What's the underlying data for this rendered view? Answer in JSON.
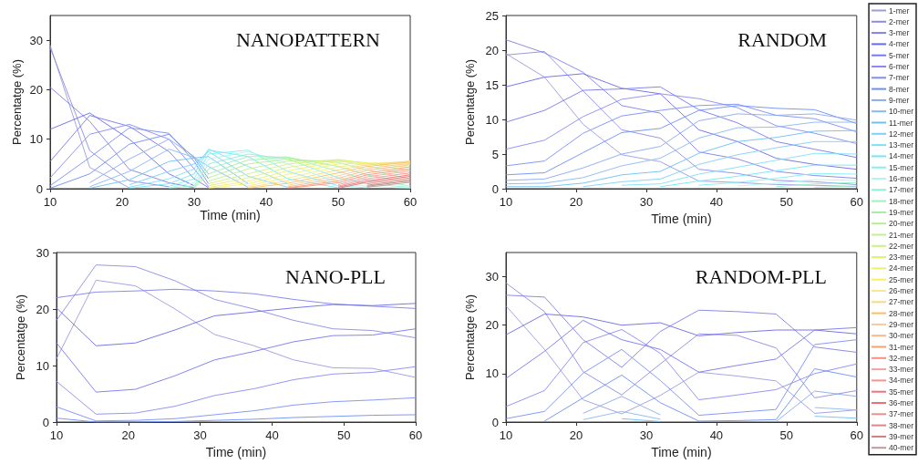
{
  "chart_data": [
    {
      "type": "line",
      "title": "NANOPATTERN",
      "xlabel": "Time (min)",
      "ylabel": "Percentatge (%)",
      "x": [
        10,
        15.5,
        21,
        26.5,
        30,
        32,
        37.5,
        43,
        50,
        54,
        60
      ],
      "xlim": [
        10,
        60
      ],
      "xticks": [
        10,
        20,
        30,
        40,
        50,
        60
      ],
      "ylim": [
        0,
        35
      ],
      "yticks": [
        0,
        10,
        20,
        30
      ],
      "grid": false,
      "marker": "none",
      "line_style": "solid",
      "legend": "right",
      "series": [
        {
          "name": "1-mer",
          "color": "#9b9be0",
          "values": [
            29,
            4.3,
            0.2,
            null,
            null,
            null,
            null,
            null,
            null,
            null,
            null
          ]
        },
        {
          "name": "2-mer",
          "color": "#8c8ce6",
          "values": [
            28.5,
            7.7,
            1.6,
            0.4,
            null,
            null,
            null,
            null,
            null,
            null,
            null
          ]
        },
        {
          "name": "3-mer",
          "color": "#8080e8",
          "values": [
            20.5,
            13.6,
            3.9,
            1.2,
            0.2,
            null,
            null,
            null,
            null,
            null,
            null
          ]
        },
        {
          "name": "4-mer",
          "color": "#6a6ae6",
          "values": [
            12,
            15.3,
            10,
            3,
            0.6,
            null,
            null,
            null,
            null,
            null,
            null
          ]
        },
        {
          "name": "5-mer",
          "color": "#7878f0",
          "values": [
            5.5,
            14.8,
            12.6,
            7.5,
            2,
            0.2,
            null,
            null,
            null,
            null,
            null
          ]
        },
        {
          "name": "6-mer",
          "color": "#8a8af5",
          "values": [
            2.2,
            11,
            13,
            10,
            4,
            0.4,
            null,
            null,
            null,
            null,
            null
          ]
        },
        {
          "name": "7-mer",
          "color": "#7b8ff5",
          "values": [
            0.6,
            6.3,
            12.3,
            11.2,
            5.5,
            1,
            null,
            null,
            null,
            null,
            null
          ]
        },
        {
          "name": "8-mer",
          "color": "#6d8ff2",
          "values": [
            0.1,
            3,
            9,
            11,
            6.2,
            2,
            null,
            null,
            null,
            null,
            null
          ]
        },
        {
          "name": "9-mer",
          "color": "#8aaaf0",
          "values": [
            null,
            1.2,
            6,
            10,
            6.5,
            3,
            null,
            null,
            null,
            null,
            null
          ]
        },
        {
          "name": "10-mer",
          "color": "#8ab8f0",
          "values": [
            null,
            0.4,
            3.5,
            8,
            6.3,
            4.5,
            0.3,
            null,
            null,
            null,
            null
          ]
        },
        {
          "name": "11-mer",
          "color": "#6ec0f2",
          "values": [
            null,
            0.1,
            1.8,
            5.5,
            6.2,
            6.5,
            1,
            null,
            null,
            null,
            null
          ]
        },
        {
          "name": "12-mer",
          "color": "#80cff5",
          "values": [
            null,
            null,
            0.8,
            3.5,
            5,
            7.5,
            2.5,
            0.3,
            null,
            null,
            null
          ]
        },
        {
          "name": "13-mer",
          "color": "#80e0f5",
          "values": [
            null,
            null,
            0.3,
            2,
            4,
            8,
            4.5,
            1,
            null,
            null,
            null
          ]
        },
        {
          "name": "14-mer",
          "color": "#70e8f5",
          "values": [
            null,
            null,
            0.1,
            1,
            3,
            7.8,
            6.5,
            2,
            0.2,
            null,
            null
          ]
        },
        {
          "name": "15-mer",
          "color": "#80f0f0",
          "values": [
            null,
            null,
            null,
            0.5,
            2,
            7,
            7.8,
            3.5,
            0.6,
            0.2,
            null
          ]
        },
        {
          "name": "16-mer",
          "color": "#b0f5f0",
          "values": [
            null,
            null,
            null,
            0.2,
            1.2,
            6,
            7.5,
            5,
            1.2,
            0.5,
            0.1
          ]
        },
        {
          "name": "17-mer",
          "color": "#90f0d0",
          "values": [
            null,
            null,
            null,
            0.1,
            0.6,
            5,
            7,
            6,
            2.2,
            1,
            0.3
          ]
        },
        {
          "name": "18-mer",
          "color": "#a0f0c0",
          "values": [
            null,
            null,
            null,
            null,
            0.3,
            4,
            6.5,
            6.4,
            3.5,
            1.8,
            0.6
          ]
        },
        {
          "name": "19-mer",
          "color": "#a0f0a0",
          "values": [
            null,
            null,
            null,
            null,
            0.1,
            3,
            5.8,
            6.3,
            4.5,
            2.8,
            1.2
          ]
        },
        {
          "name": "20-mer",
          "color": "#b0f090",
          "values": [
            null,
            null,
            null,
            null,
            null,
            2.2,
            5,
            6,
            5.3,
            3.8,
            2
          ]
        },
        {
          "name": "21-mer",
          "color": "#c0f090",
          "values": [
            null,
            null,
            null,
            null,
            null,
            1.5,
            4,
            5.6,
            5.7,
            4.6,
            2.8
          ]
        },
        {
          "name": "22-mer",
          "color": "#d0f080",
          "values": [
            null,
            null,
            null,
            null,
            null,
            1,
            3,
            5,
            5.9,
            5.1,
            3.6
          ]
        },
        {
          "name": "23-mer",
          "color": "#e0f070",
          "values": [
            null,
            null,
            null,
            null,
            null,
            0.6,
            2.2,
            4.3,
            5.8,
            5.2,
            4.3
          ]
        },
        {
          "name": "24-mer",
          "color": "#f0f070",
          "values": [
            null,
            null,
            null,
            null,
            null,
            0.3,
            1.5,
            3.6,
            5.5,
            5.2,
            4.9
          ]
        },
        {
          "name": "25-mer",
          "color": "#f8f060",
          "values": [
            null,
            null,
            null,
            null,
            null,
            0.1,
            1,
            2.9,
            5,
            5.1,
            5.3
          ]
        },
        {
          "name": "26-mer",
          "color": "#f8e890",
          "values": [
            null,
            null,
            null,
            null,
            null,
            null,
            0.6,
            2.2,
            4.4,
            5,
            5.5
          ]
        },
        {
          "name": "27-mer",
          "color": "#f8d880",
          "values": [
            null,
            null,
            null,
            null,
            null,
            null,
            0.3,
            1.6,
            3.8,
            4.8,
            5.6
          ]
        },
        {
          "name": "28-mer",
          "color": "#f8c060",
          "values": [
            null,
            null,
            null,
            null,
            null,
            null,
            0.1,
            1.1,
            3.2,
            4.5,
            5.4
          ]
        },
        {
          "name": "29-mer",
          "color": "#f8c8a0",
          "values": [
            null,
            null,
            null,
            null,
            null,
            null,
            null,
            0.7,
            2.6,
            4.1,
            5.1
          ]
        },
        {
          "name": "30-mer",
          "color": "#f8b890",
          "values": [
            null,
            null,
            null,
            null,
            null,
            null,
            null,
            0.4,
            2.1,
            3.7,
            4.8
          ]
        },
        {
          "name": "31-mer",
          "color": "#f8a070",
          "values": [
            null,
            null,
            null,
            null,
            null,
            null,
            null,
            0.2,
            1.6,
            3.2,
            4.4
          ]
        },
        {
          "name": "32-mer",
          "color": "#f89080",
          "values": [
            null,
            null,
            null,
            null,
            null,
            null,
            null,
            0.1,
            1.2,
            2.8,
            4
          ]
        },
        {
          "name": "33-mer",
          "color": "#f8a0a0",
          "values": [
            null,
            null,
            null,
            null,
            null,
            null,
            null,
            null,
            0.8,
            2.4,
            3.6
          ]
        },
        {
          "name": "34-mer",
          "color": "#f89090",
          "values": [
            null,
            null,
            null,
            null,
            null,
            null,
            null,
            null,
            0.5,
            2,
            3.2
          ]
        },
        {
          "name": "35-mer",
          "color": "#f07080",
          "values": [
            null,
            null,
            null,
            null,
            null,
            null,
            null,
            null,
            0.3,
            1.6,
            2.8
          ]
        },
        {
          "name": "36-mer",
          "color": "#f07070",
          "values": [
            null,
            null,
            null,
            null,
            null,
            null,
            null,
            null,
            0.1,
            1.3,
            2.5
          ]
        },
        {
          "name": "37-mer",
          "color": "#e89090",
          "values": [
            null,
            null,
            null,
            null,
            null,
            null,
            null,
            null,
            null,
            1,
            2.2
          ]
        },
        {
          "name": "38-mer",
          "color": "#d88888",
          "values": [
            null,
            null,
            null,
            null,
            null,
            null,
            null,
            null,
            null,
            0.7,
            1.9
          ]
        },
        {
          "name": "39-mer",
          "color": "#c88080",
          "values": [
            null,
            null,
            null,
            null,
            null,
            null,
            null,
            null,
            null,
            0.5,
            1.6
          ]
        },
        {
          "name": "40-mer",
          "color": "#c09898",
          "values": [
            null,
            null,
            null,
            null,
            null,
            null,
            null,
            null,
            null,
            0.3,
            1.3
          ]
        }
      ]
    },
    {
      "type": "line",
      "title": "RANDOM",
      "xlabel": "Time (min)",
      "ylabel": "Percentatge (%)",
      "x": [
        10,
        15.5,
        21,
        26.5,
        32,
        37.5,
        43,
        48.5,
        54,
        60
      ],
      "xlim": [
        10,
        60
      ],
      "xticks": [
        10,
        20,
        30,
        40,
        50,
        60
      ],
      "ylim": [
        0,
        25
      ],
      "yticks": [
        0,
        5,
        10,
        15,
        20,
        25
      ],
      "grid": false,
      "marker": "none",
      "line_style": "solid",
      "series": [
        {
          "color": "#9b9be0",
          "values": [
            19.5,
            16.1,
            9.3,
            4.9,
            3.9,
            1.1,
            0.9,
            0.6,
            0.5,
            0.3
          ]
        },
        {
          "color": "#8c8ce6",
          "values": [
            19.3,
            19.8,
            14.1,
            8.5,
            7.3,
            2.8,
            2.2,
            1.2,
            1,
            0.6
          ]
        },
        {
          "color": "#8080e8",
          "values": [
            21.5,
            19.6,
            16.8,
            12,
            10.9,
            5.3,
            4.3,
            2.5,
            1.9,
            1.5
          ]
        },
        {
          "color": "#6a6ae6",
          "values": [
            14.7,
            16.1,
            16.6,
            14.5,
            13.7,
            8.5,
            6.8,
            4.4,
            3.5,
            2.8
          ]
        },
        {
          "color": "#7878f0",
          "values": [
            9.6,
            11.3,
            14.2,
            14.4,
            14.7,
            11.4,
            9.5,
            6.8,
            5.7,
            4.5
          ]
        },
        {
          "color": "#8a8af5",
          "values": [
            5.7,
            7,
            10.4,
            12.9,
            13.7,
            13,
            11.7,
            9.1,
            8,
            6.5
          ]
        },
        {
          "color": "#7b8ff5",
          "values": [
            3.3,
            4,
            8,
            10.5,
            11.3,
            12,
            12.2,
            10.6,
            10.1,
            8.2
          ]
        },
        {
          "color": "#6d8ff2",
          "values": [
            2,
            2.3,
            5.2,
            8.1,
            8.7,
            11.3,
            12,
            11.6,
            11.4,
            9.4
          ]
        },
        {
          "color": "#8aaaf0",
          "values": [
            1.2,
            1.4,
            3,
            5,
            6.1,
            9.8,
            10.8,
            10.6,
            10.8,
            9.9
          ]
        },
        {
          "color": "#8ab8f0",
          "values": [
            0.7,
            0.8,
            1.6,
            3.3,
            4.4,
            7.3,
            8.8,
            8.9,
            9.6,
            9.6
          ]
        },
        {
          "color": "#6ec0f2",
          "values": [
            0.3,
            0.3,
            0.8,
            2,
            2.5,
            5.1,
            6.8,
            7.4,
            8.3,
            8.4
          ]
        },
        {
          "color": "#80cff5",
          "values": [
            null,
            null,
            0.3,
            1,
            1.4,
            3.5,
            4.9,
            5.9,
            6.8,
            6.8
          ]
        },
        {
          "color": "#80e0f5",
          "values": [
            null,
            null,
            null,
            0.5,
            0.7,
            2.1,
            3.1,
            4.1,
            5.1,
            5
          ]
        },
        {
          "color": "#70e8f5",
          "values": [
            null,
            null,
            null,
            null,
            0.3,
            1.1,
            1.8,
            2.6,
            3.4,
            3.4
          ]
        },
        {
          "color": "#80f0f0",
          "values": [
            null,
            null,
            null,
            null,
            null,
            0.5,
            0.9,
            1.5,
            2.2,
            2.1
          ]
        },
        {
          "color": "#b0f5f0",
          "values": [
            null,
            null,
            null,
            null,
            null,
            null,
            0.4,
            0.8,
            1.3,
            1.2
          ]
        },
        {
          "color": "#90f0d0",
          "values": [
            null,
            null,
            null,
            null,
            null,
            null,
            null,
            0.3,
            0.7,
            0.9
          ]
        },
        {
          "color": "#a0f0c0",
          "values": [
            null,
            null,
            null,
            null,
            null,
            null,
            null,
            null,
            0.2,
            0.4
          ]
        }
      ]
    },
    {
      "type": "line",
      "title": "NANO-PLL",
      "xlabel": "Time (min)",
      "ylabel": "Percentatge (%)",
      "x": [
        10,
        15.5,
        21,
        26.5,
        32,
        37.5,
        43,
        48.5,
        54,
        60
      ],
      "xlim": [
        10,
        60
      ],
      "xticks": [
        10,
        20,
        30,
        40,
        50,
        60
      ],
      "ylim": [
        0,
        30
      ],
      "yticks": [
        0,
        10,
        20,
        30
      ],
      "grid": false,
      "marker": "none",
      "line_style": "solid",
      "series": [
        {
          "color": "#9b9be0",
          "values": [
            11.2,
            25.1,
            24.1,
            20,
            15.5,
            13.5,
            11,
            9.6,
            9.5,
            7.9
          ]
        },
        {
          "color": "#8c8ce6",
          "values": [
            18,
            27.8,
            27.5,
            25,
            21.7,
            20,
            18,
            16.5,
            16.2,
            14.9
          ]
        },
        {
          "color": "#8080e8",
          "values": [
            22,
            23,
            23.2,
            23.5,
            23.2,
            22.7,
            21.7,
            20.9,
            20.5,
            20.1
          ]
        },
        {
          "color": "#6a6ae6",
          "values": [
            20.2,
            13.5,
            14,
            16.3,
            18.8,
            19.5,
            20.2,
            20.8,
            20.6,
            21
          ]
        },
        {
          "color": "#7878f0",
          "values": [
            14,
            5.3,
            5.8,
            8.2,
            11,
            12.5,
            14.2,
            15.3,
            15.4,
            16.5
          ]
        },
        {
          "color": "#8a8af5",
          "values": [
            7.2,
            1.4,
            1.6,
            2.8,
            4.7,
            5.9,
            7.5,
            8.5,
            8.8,
            9.8
          ]
        },
        {
          "color": "#7b8ff5",
          "values": [
            2.7,
            0.2,
            0.3,
            0.6,
            1.3,
            2,
            3,
            3.6,
            3.9,
            4.3
          ]
        },
        {
          "color": "#6d8ff2",
          "values": [
            0.7,
            0,
            0,
            0.1,
            0.3,
            0.5,
            0.8,
            1,
            1.2,
            1.3
          ]
        }
      ]
    },
    {
      "type": "line",
      "title": "RANDOM-PLL",
      "xlabel": "Time (min)",
      "ylabel": "Percentatge (%)",
      "x": [
        10,
        15.5,
        21,
        26.5,
        32,
        37.5,
        43,
        48.5,
        54,
        60
      ],
      "xlim": [
        10,
        60
      ],
      "xticks": [
        10,
        20,
        30,
        40,
        50,
        60
      ],
      "ylim": [
        0,
        35
      ],
      "yticks": [
        0,
        10,
        20,
        30
      ],
      "grid": false,
      "marker": "none",
      "line_style": "solid",
      "series": [
        {
          "color": "#9b9be0",
          "values": [
            24,
            15,
            4.6,
            1.7,
            5.5,
            10.3,
            9.5,
            8.5,
            1.8,
            2.5
          ]
        },
        {
          "color": "#8c8ce6",
          "values": [
            28.7,
            22.8,
            10.4,
            5.6,
            12,
            18.2,
            17.9,
            15.3,
            5,
            6.5
          ]
        },
        {
          "color": "#8080e8",
          "values": [
            26.2,
            25.8,
            17,
            11.3,
            18.7,
            23.1,
            22.8,
            22.3,
            15.5,
            14.4
          ]
        },
        {
          "color": "#6a6ae6",
          "values": [
            18,
            22.3,
            21.7,
            20,
            20.5,
            17.8,
            18.5,
            19,
            19,
            18.2
          ]
        },
        {
          "color": "#7878f0",
          "values": [
            9,
            14.6,
            21,
            17,
            15,
            10.3,
            11.7,
            13,
            19,
            19.5
          ]
        },
        {
          "color": "#8a8af5",
          "values": [
            3.2,
            6.5,
            16.4,
            19.1,
            14.2,
            4.6,
            5.6,
            6.7,
            10,
            12
          ]
        },
        {
          "color": "#7b8ff5",
          "values": [
            0.7,
            2.2,
            10.1,
            15,
            8.6,
            1.4,
            2,
            2.6,
            16,
            17
          ]
        },
        {
          "color": "#6d8ff2",
          "values": [
            null,
            0.2,
            5,
            9.7,
            4,
            0.2,
            0.3,
            0.5,
            11,
            9.3
          ]
        },
        {
          "color": "#8aaaf0",
          "values": [
            null,
            null,
            1.8,
            5.3,
            1.5,
            null,
            null,
            0.1,
            6.4,
            5.3
          ]
        },
        {
          "color": "#8ab8f0",
          "values": [
            null,
            null,
            0.5,
            2.2,
            0.6,
            null,
            null,
            null,
            3,
            2.5
          ]
        },
        {
          "color": "#6ec0f2",
          "values": [
            null,
            null,
            null,
            0.7,
            0.1,
            null,
            null,
            null,
            1.2,
            0.8
          ]
        }
      ]
    }
  ]
}
